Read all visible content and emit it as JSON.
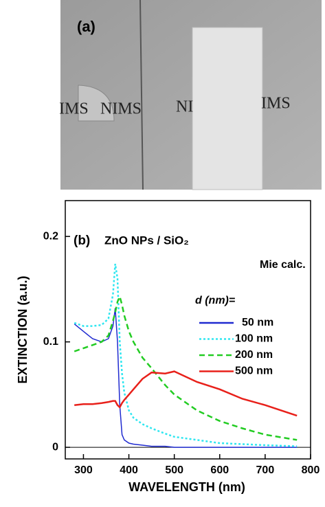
{
  "photo": {
    "panel_label": "(a)",
    "texts": [
      "IMS",
      "NIMS",
      "NI",
      "IMS"
    ]
  },
  "chart_data": {
    "type": "line",
    "panel_label": "(b)",
    "title": "ZnO NPs / SiO₂",
    "annotation": "Mie calc.",
    "legend_title": "d (nm)=",
    "x_label": "WAVELENGTH  (nm)",
    "y_label": "EXTINCTION  (a.u.)",
    "x": [
      280,
      300,
      320,
      340,
      355,
      365,
      370,
      375,
      380,
      385,
      390,
      400,
      410,
      430,
      450,
      480,
      500,
      550,
      600,
      650,
      700,
      770
    ],
    "series": [
      {
        "name": "50 nm",
        "color": "#1f2ad0",
        "dash": "solid",
        "values": [
          0.117,
          0.11,
          0.103,
          0.1,
          0.103,
          0.115,
          0.132,
          0.1,
          0.04,
          0.012,
          0.007,
          0.004,
          0.003,
          0.002,
          0.001,
          0.001,
          0,
          0,
          0,
          0,
          0,
          0
        ]
      },
      {
        "name": "100 nm",
        "color": "#2ee6f0",
        "dash": "dot",
        "values": [
          0.118,
          0.115,
          0.115,
          0.116,
          0.122,
          0.145,
          0.174,
          0.16,
          0.1,
          0.07,
          0.052,
          0.035,
          0.028,
          0.022,
          0.018,
          0.013,
          0.01,
          0.007,
          0.004,
          0.003,
          0.002,
          0.001
        ]
      },
      {
        "name": "200 nm",
        "color": "#22cc22",
        "dash": "dash",
        "values": [
          0.091,
          0.094,
          0.097,
          0.1,
          0.106,
          0.12,
          0.128,
          0.138,
          0.143,
          0.135,
          0.125,
          0.11,
          0.1,
          0.085,
          0.075,
          0.059,
          0.05,
          0.035,
          0.025,
          0.018,
          0.012,
          0.007
        ]
      },
      {
        "name": "500 nm",
        "color": "#e8201a",
        "dash": "solid",
        "values": [
          0.04,
          0.041,
          0.041,
          0.042,
          0.043,
          0.044,
          0.044,
          0.04,
          0.038,
          0.042,
          0.045,
          0.05,
          0.055,
          0.065,
          0.071,
          0.07,
          0.072,
          0.062,
          0.055,
          0.046,
          0.04,
          0.03
        ]
      }
    ],
    "xlim": [
      260,
      800
    ],
    "xticks": [
      300,
      400,
      500,
      600,
      700,
      800
    ],
    "ylim": [
      -0.011,
      0.234
    ],
    "yticks": [
      0,
      0.1,
      0.2
    ],
    "zero_line": true
  }
}
